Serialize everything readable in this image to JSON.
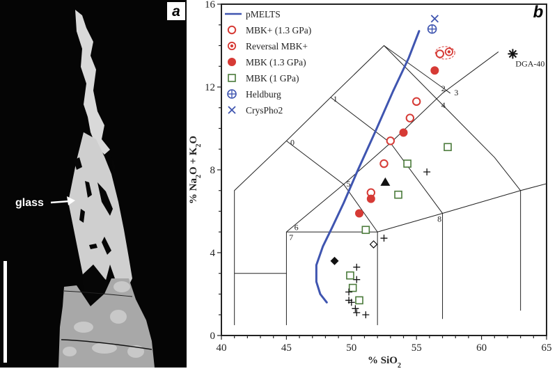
{
  "panel_a": {
    "label": "a",
    "annotation": "glass",
    "image_description": "Backscattered electron micrograph showing interstitial glass pocket among dark crystals; scale bar at lower left"
  },
  "panel_b": {
    "label": "b"
  },
  "colors": {
    "red": "#d63a35",
    "green": "#4a7a3a",
    "blue": "#3f55b0",
    "black": "#111111"
  },
  "chart_data": {
    "type": "scatter",
    "title": "",
    "xlabel": "% SiO2",
    "ylabel": "% Na2O + K2O",
    "xlim": [
      40,
      65
    ],
    "ylim": [
      0,
      16
    ],
    "xticks": [
      40,
      45,
      50,
      55,
      60,
      65
    ],
    "yticks": [
      0,
      4,
      8,
      12,
      16
    ],
    "grid": false,
    "legend_position": "top-left",
    "legend": [
      {
        "label": "pMELTS",
        "marker": "line",
        "color": "#3f55b0"
      },
      {
        "label": "MBK+ (1.3 GPa)",
        "marker": "open-circle",
        "color": "#d63a35"
      },
      {
        "label": "Reversal MBK+",
        "marker": "double-circle",
        "color": "#d63a35"
      },
      {
        "label": "MBK (1.3 GPa)",
        "marker": "filled-circle",
        "color": "#d63a35"
      },
      {
        "label": "MBK (1 GPa)",
        "marker": "open-square",
        "color": "#4a7a3a"
      },
      {
        "label": "Heldburg",
        "marker": "circle-plus",
        "color": "#3f55b0"
      },
      {
        "label": "CrysPho2",
        "marker": "x",
        "color": "#3f55b0"
      }
    ],
    "tas_fields": {
      "polylines": [
        [
          [
            41,
            0.5
          ],
          [
            41,
            7
          ],
          [
            45,
            9.4
          ],
          [
            48.4,
            11.5
          ],
          [
            52.5,
            14
          ],
          [
            61,
            8.6
          ],
          [
            63,
            7
          ],
          [
            69,
            8
          ]
        ],
        [
          [
            41,
            3
          ],
          [
            45,
            3
          ]
        ],
        [
          [
            45,
            0.5
          ],
          [
            45,
            5
          ],
          [
            49.4,
            7.3
          ],
          [
            53,
            9.3
          ],
          [
            57,
            11.7
          ],
          [
            61.3,
            13.7
          ]
        ],
        [
          [
            45,
            5
          ],
          [
            52,
            5
          ],
          [
            52,
            0.5
          ]
        ],
        [
          [
            52,
            5
          ],
          [
            57,
            5.9
          ],
          [
            63,
            7
          ]
        ],
        [
          [
            57,
            5.9
          ],
          [
            57,
            0.8
          ]
        ],
        [
          [
            63,
            7
          ],
          [
            63,
            1.2
          ]
        ],
        [
          [
            45,
            9.4
          ],
          [
            49.4,
            7.3
          ],
          [
            52,
            5
          ]
        ],
        [
          [
            48.4,
            11.5
          ],
          [
            53,
            9.3
          ],
          [
            57,
            5.9
          ]
        ],
        [
          [
            52.5,
            14
          ],
          [
            57.6,
            11.7
          ]
        ]
      ],
      "labels": [
        {
          "text": "0",
          "x": 45.3,
          "y": 9.2
        },
        {
          "text": "1",
          "x": 48.6,
          "y": 11.3
        },
        {
          "text": "2",
          "x": 56.9,
          "y": 11.8
        },
        {
          "text": "3",
          "x": 57.9,
          "y": 11.6
        },
        {
          "text": "4",
          "x": 56.9,
          "y": 11.0
        },
        {
          "text": "5",
          "x": 49.6,
          "y": 7.2
        },
        {
          "text": "6",
          "x": 45.6,
          "y": 5.1
        },
        {
          "text": "7",
          "x": 45.2,
          "y": 4.6
        },
        {
          "text": "8",
          "x": 56.6,
          "y": 5.5
        }
      ]
    },
    "series": [
      {
        "name": "pMELTS",
        "type": "line",
        "points": [
          [
            48.1,
            1.6
          ],
          [
            47.6,
            2.0
          ],
          [
            47.3,
            2.6
          ],
          [
            47.3,
            3.4
          ],
          [
            47.8,
            4.3
          ],
          [
            48.5,
            5.2
          ],
          [
            49.4,
            6.4
          ],
          [
            50.5,
            8.0
          ],
          [
            51.8,
            9.8
          ],
          [
            53.2,
            11.8
          ],
          [
            54.4,
            13.4
          ],
          [
            55.2,
            14.7
          ]
        ]
      },
      {
        "name": "MBK+ (1.3 GPa)",
        "marker": "open-circle",
        "points": [
          [
            51.5,
            6.9
          ],
          [
            52.5,
            8.3
          ],
          [
            53,
            9.4
          ],
          [
            54.5,
            10.5
          ],
          [
            55,
            11.3
          ],
          [
            56.8,
            13.6
          ]
        ]
      },
      {
        "name": "Reversal MBK+",
        "marker": "double-circle",
        "points": [
          [
            57.5,
            13.7
          ]
        ]
      },
      {
        "name": "MBK (1.3 GPa)",
        "marker": "filled-circle",
        "points": [
          [
            50.6,
            5.9
          ],
          [
            51.5,
            6.6
          ],
          [
            54,
            9.8
          ],
          [
            56.4,
            12.8
          ]
        ]
      },
      {
        "name": "MBK (1 GPa)",
        "marker": "open-square",
        "points": [
          [
            51.1,
            5.1
          ],
          [
            53.6,
            6.8
          ],
          [
            54.3,
            8.3
          ],
          [
            57.4,
            9.1
          ],
          [
            49.9,
            2.9
          ],
          [
            50.1,
            2.3
          ],
          [
            50.6,
            1.7
          ]
        ]
      },
      {
        "name": "Heldburg",
        "marker": "circle-plus",
        "points": [
          [
            56.2,
            14.8
          ]
        ]
      },
      {
        "name": "CrysPho2",
        "marker": "x",
        "points": [
          [
            56.4,
            15.3
          ]
        ]
      },
      {
        "name": "Unlabeled filled triangle",
        "marker": "filled-triangle",
        "points": [
          [
            52.6,
            7.4
          ]
        ]
      },
      {
        "name": "Unlabeled open diamond",
        "marker": "open-diamond",
        "points": [
          [
            51.7,
            4.4
          ]
        ]
      },
      {
        "name": "Unlabeled filled diamond",
        "marker": "filled-diamond",
        "points": [
          [
            48.7,
            3.6
          ]
        ]
      },
      {
        "name": "Unlabeled crosses",
        "marker": "plus",
        "points": [
          [
            55.8,
            7.9
          ],
          [
            52.5,
            4.7
          ],
          [
            50.4,
            3.3
          ],
          [
            50.4,
            2.7
          ],
          [
            49.8,
            2.1
          ],
          [
            49.8,
            1.7
          ],
          [
            50.0,
            1.6
          ],
          [
            50.3,
            1.3
          ],
          [
            50.4,
            1.1
          ],
          [
            51.1,
            1.0
          ]
        ]
      },
      {
        "name": "DGA-40",
        "marker": "asterisk",
        "label": "DGA-40",
        "points": [
          [
            62.4,
            13.6
          ]
        ]
      }
    ]
  }
}
